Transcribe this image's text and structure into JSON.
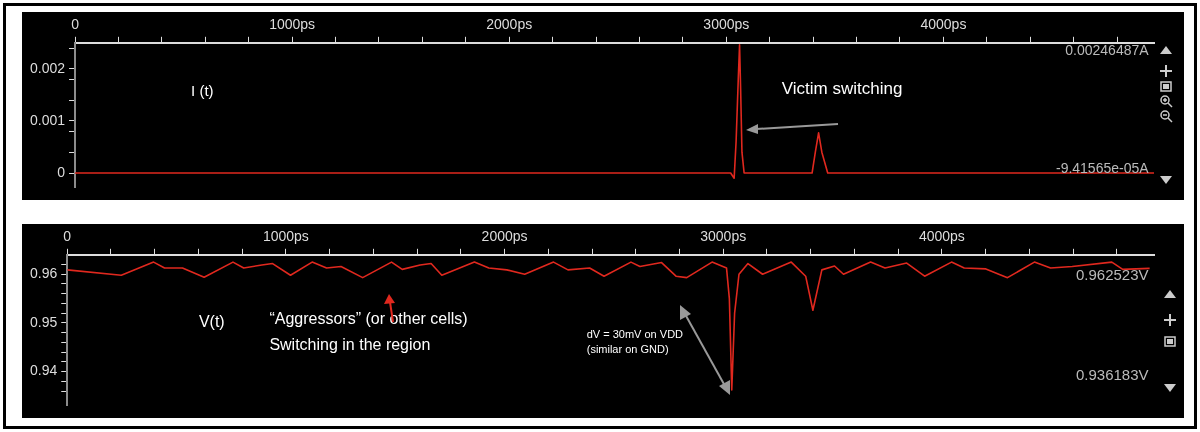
{
  "chart_data": [
    {
      "type": "line",
      "xlim": [
        0,
        4970
      ],
      "ylim": [
        -0.00028,
        0.0025
      ],
      "xticks": [
        0,
        {
          "value": 200,
          "label": null
        },
        {
          "value": 400,
          "label": null
        },
        {
          "value": 600,
          "label": null
        },
        {
          "value": 800,
          "label": null
        },
        {
          "value": 1000,
          "label": "1000ps"
        },
        {
          "value": 1200,
          "label": null
        },
        {
          "value": 1400,
          "label": null
        },
        {
          "value": 1600,
          "label": null
        },
        {
          "value": 1800,
          "label": null
        },
        {
          "value": 2000,
          "label": "2000ps"
        },
        {
          "value": 2200,
          "label": null
        },
        {
          "value": 2400,
          "label": null
        },
        {
          "value": 2600,
          "label": null
        },
        {
          "value": 2800,
          "label": null
        },
        {
          "value": 3000,
          "label": "3000ps"
        },
        {
          "value": 3200,
          "label": null
        },
        {
          "value": 3400,
          "label": null
        },
        {
          "value": 3600,
          "label": null
        },
        {
          "value": 3800,
          "label": null
        },
        {
          "value": 4000,
          "label": "4000ps"
        },
        {
          "value": 4200,
          "label": null
        },
        {
          "value": 4400,
          "label": null
        },
        {
          "value": 4600,
          "label": null
        },
        {
          "value": 4800,
          "label": null
        }
      ],
      "yticks": [
        0,
        {
          "value": 0.0004,
          "label": null
        },
        {
          "value": 0.0008,
          "label": null
        },
        0.001,
        {
          "value": 0.0014,
          "label": null
        },
        {
          "value": 0.0018,
          "label": null
        },
        0.002,
        {
          "value": 0.0024,
          "label": null
        }
      ],
      "grid": false,
      "series": [
        {
          "color": "#e0281e",
          "x": [
            0,
            3020,
            3036,
            3045,
            3055,
            3061,
            3066,
            3072,
            3082,
            3395,
            3410,
            3425,
            3440,
            3467,
            4970
          ],
          "values": [
            0,
            0,
            -0.0001,
            0.0006,
            0.0018,
            0.00246,
            0.0016,
            0.0004,
            0,
            0,
            0.0004,
            0.00077,
            0.0004,
            0,
            0
          ]
        }
      ],
      "annotations": [
        "I (t)",
        "Victim switching",
        "0.00246487A",
        "-9.41565e-05A"
      ]
    },
    {
      "type": "line",
      "xlim": [
        0,
        4970
      ],
      "ylim": [
        0.933,
        0.964
      ],
      "xticks": [
        0,
        {
          "value": 200,
          "label": null
        },
        {
          "value": 400,
          "label": null
        },
        {
          "value": 600,
          "label": null
        },
        {
          "value": 800,
          "label": null
        },
        {
          "value": 1000,
          "label": "1000ps"
        },
        {
          "value": 1200,
          "label": null
        },
        {
          "value": 1400,
          "label": null
        },
        {
          "value": 1600,
          "label": null
        },
        {
          "value": 1800,
          "label": null
        },
        {
          "value": 2000,
          "label": "2000ps"
        },
        {
          "value": 2200,
          "label": null
        },
        {
          "value": 2400,
          "label": null
        },
        {
          "value": 2600,
          "label": null
        },
        {
          "value": 2800,
          "label": null
        },
        {
          "value": 3000,
          "label": "3000ps"
        },
        {
          "value": 3200,
          "label": null
        },
        {
          "value": 3400,
          "label": null
        },
        {
          "value": 3600,
          "label": null
        },
        {
          "value": 3800,
          "label": null
        },
        {
          "value": 4000,
          "label": "4000ps"
        },
        {
          "value": 4200,
          "label": null
        },
        {
          "value": 4400,
          "label": null
        },
        {
          "value": 4600,
          "label": null
        },
        {
          "value": 4800,
          "label": null
        }
      ],
      "yticks": [
        {
          "value": 0.936,
          "label": null
        },
        {
          "value": 0.938,
          "label": null
        },
        0.94,
        {
          "value": 0.942,
          "label": null
        },
        {
          "value": 0.944,
          "label": null
        },
        {
          "value": 0.946,
          "label": null
        },
        {
          "value": 0.948,
          "label": null
        },
        0.95,
        {
          "value": 0.952,
          "label": null
        },
        {
          "value": 0.954,
          "label": null
        },
        {
          "value": 0.956,
          "label": null
        },
        {
          "value": 0.958,
          "label": null
        },
        0.96,
        {
          "value": 0.962,
          "label": null
        }
      ],
      "grid": false,
      "series": [
        {
          "color": "#e0281e",
          "x": [
            0,
            247,
            395,
            445,
            527,
            626,
            758,
            807,
            890,
            939,
            1021,
            1120,
            1186,
            1252,
            1351,
            1483,
            1532,
            1614,
            1664,
            1713,
            1862,
            1928,
            2010,
            2092,
            2224,
            2290,
            2389,
            2455,
            2578,
            2619,
            2718,
            2784,
            2833,
            2949,
            3015,
            3028,
            3039,
            3052,
            3072,
            3113,
            3180,
            3311,
            3377,
            3410,
            3451,
            3509,
            3550,
            3674,
            3740,
            3839,
            3921,
            4044,
            4102,
            4201,
            4300,
            4423,
            4497,
            4596,
            4777,
            4827,
            4950
          ],
          "values": [
            0.9609,
            0.9598,
            0.9625,
            0.9613,
            0.9613,
            0.9594,
            0.9625,
            0.9613,
            0.9619,
            0.9622,
            0.9598,
            0.9625,
            0.9613,
            0.9616,
            0.9593,
            0.9625,
            0.961,
            0.9619,
            0.9622,
            0.9598,
            0.9625,
            0.9613,
            0.9609,
            0.96,
            0.9625,
            0.9609,
            0.9613,
            0.9596,
            0.9625,
            0.9616,
            0.9624,
            0.9596,
            0.9593,
            0.9625,
            0.9613,
            0.955,
            0.9362,
            0.952,
            0.96,
            0.9622,
            0.96,
            0.9625,
            0.9596,
            0.9526,
            0.9609,
            0.9617,
            0.96,
            0.9625,
            0.9613,
            0.9623,
            0.9596,
            0.9625,
            0.9613,
            0.9611,
            0.9593,
            0.9625,
            0.9613,
            0.9616,
            0.9625,
            0.961,
            0.9612
          ]
        }
      ],
      "annotations": [
        "V(t)",
        "“Aggressors” (or other cells)",
        "Switching in the region",
        "dV = 30mV on VDD",
        "(similar on GND)",
        "0.962523V",
        "0.936183V"
      ]
    }
  ]
}
